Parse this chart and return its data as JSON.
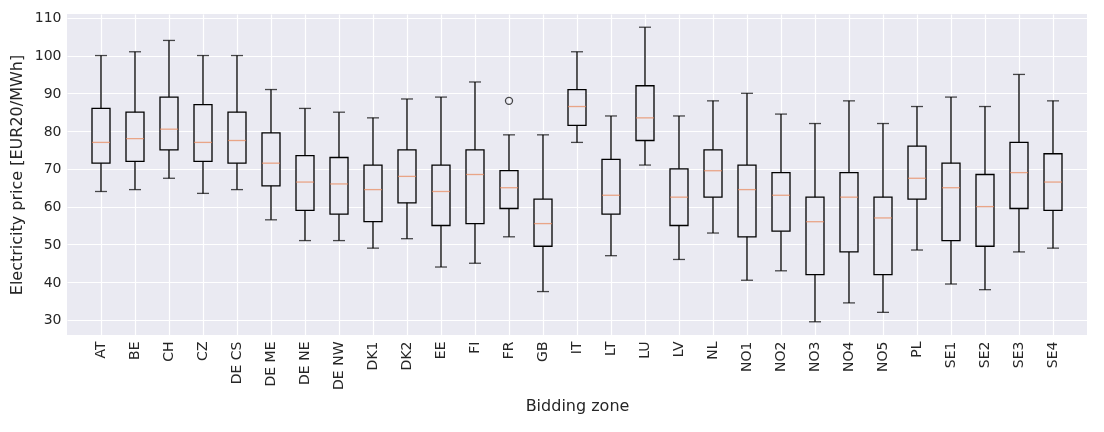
{
  "chart_data": {
    "type": "box",
    "xlabel": "Bidding zone",
    "ylabel": "Electricity price [EUR20/MWh]",
    "categories": [
      "AT",
      "BE",
      "CH",
      "CZ",
      "DE CS",
      "DE ME",
      "DE NE",
      "DE NW",
      "DK1",
      "DK2",
      "EE",
      "FI",
      "FR",
      "GB",
      "IT",
      "LT",
      "LU",
      "LV",
      "NL",
      "NO1",
      "NO2",
      "NO3",
      "NO4",
      "NO5",
      "PL",
      "SE1",
      "SE2",
      "SE3",
      "SE4"
    ],
    "boxes": [
      {
        "low": 64,
        "q1": 71.5,
        "median": 77,
        "q3": 86,
        "high": 100
      },
      {
        "low": 64.5,
        "q1": 72,
        "median": 78,
        "q3": 85,
        "high": 101
      },
      {
        "low": 67.5,
        "q1": 75,
        "median": 80.5,
        "q3": 89,
        "high": 104
      },
      {
        "low": 63.5,
        "q1": 72,
        "median": 77,
        "q3": 87,
        "high": 100
      },
      {
        "low": 64.5,
        "q1": 71.5,
        "median": 77.5,
        "q3": 85,
        "high": 100
      },
      {
        "low": 56.5,
        "q1": 65.5,
        "median": 71.5,
        "q3": 79.5,
        "high": 91
      },
      {
        "low": 51,
        "q1": 59,
        "median": 66.5,
        "q3": 73.5,
        "high": 86
      },
      {
        "low": 51,
        "q1": 58,
        "median": 66,
        "q3": 73,
        "high": 85
      },
      {
        "low": 49,
        "q1": 56,
        "median": 64.5,
        "q3": 71,
        "high": 83.5
      },
      {
        "low": 51.5,
        "q1": 61,
        "median": 68,
        "q3": 75,
        "high": 88.5
      },
      {
        "low": 44,
        "q1": 55,
        "median": 64,
        "q3": 71,
        "high": 89
      },
      {
        "low": 45,
        "q1": 55.5,
        "median": 68.5,
        "q3": 75,
        "high": 93
      },
      {
        "low": 52,
        "q1": 59.5,
        "median": 65,
        "q3": 69.5,
        "high": 79,
        "outliers": [
          88
        ]
      },
      {
        "low": 37.5,
        "q1": 49.5,
        "median": 55.5,
        "q3": 62,
        "high": 79
      },
      {
        "low": 77,
        "q1": 81.5,
        "median": 86.5,
        "q3": 91,
        "high": 101
      },
      {
        "low": 47,
        "q1": 58,
        "median": 63,
        "q3": 72.5,
        "high": 84
      },
      {
        "low": 71,
        "q1": 77.5,
        "median": 83.5,
        "q3": 92,
        "high": 107.5
      },
      {
        "low": 46,
        "q1": 55,
        "median": 62.5,
        "q3": 70,
        "high": 84
      },
      {
        "low": 53,
        "q1": 62.5,
        "median": 69.5,
        "q3": 75,
        "high": 88
      },
      {
        "low": 40.5,
        "q1": 52,
        "median": 64.5,
        "q3": 71,
        "high": 90
      },
      {
        "low": 43,
        "q1": 53.5,
        "median": 63,
        "q3": 69,
        "high": 84.5
      },
      {
        "low": 29.5,
        "q1": 42,
        "median": 56,
        "q3": 62.5,
        "high": 82
      },
      {
        "low": 34.5,
        "q1": 48,
        "median": 62.5,
        "q3": 69,
        "high": 88
      },
      {
        "low": 32,
        "q1": 42,
        "median": 57,
        "q3": 62.5,
        "high": 82
      },
      {
        "low": 48.5,
        "q1": 62,
        "median": 67.5,
        "q3": 76,
        "high": 86.5
      },
      {
        "low": 39.5,
        "q1": 51,
        "median": 65,
        "q3": 71.5,
        "high": 89
      },
      {
        "low": 38,
        "q1": 49.5,
        "median": 60,
        "q3": 68.5,
        "high": 86.5
      },
      {
        "low": 48,
        "q1": 59.5,
        "median": 69,
        "q3": 77,
        "high": 95
      },
      {
        "low": 49,
        "q1": 59,
        "median": 66.5,
        "q3": 74,
        "high": 88
      }
    ],
    "ylim": [
      26,
      111
    ],
    "yticks": [
      30,
      40,
      50,
      60,
      70,
      80,
      90,
      100,
      110
    ],
    "grid": true
  }
}
